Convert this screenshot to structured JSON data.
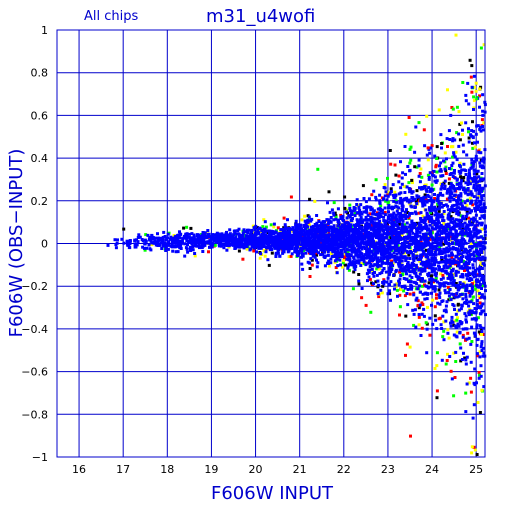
{
  "chart_data": {
    "type": "scatter",
    "title": "m31_u4wofi",
    "subtitle": "All chips",
    "xlabel": "F606W INPUT",
    "ylabel": "F606W (OBS−INPUT)",
    "xlim": [
      15.5,
      25.2
    ],
    "ylim": [
      -1,
      1
    ],
    "x_ticks": [
      "16",
      "17",
      "18",
      "19",
      "20",
      "21",
      "22",
      "23",
      "24",
      "25"
    ],
    "y_ticks": [
      "1",
      "0.8",
      "0.6",
      "0.4",
      "0.2",
      "0",
      "−0.2",
      "−0.4",
      "−0.6",
      "−0.8",
      "−1"
    ],
    "grid": true,
    "point_colors": [
      "#0000ff",
      "#00ff00",
      "#ff0000",
      "#000000",
      "#ffff00"
    ],
    "series": [
      {
        "values": [
          {
            "x": 16.5,
            "y": 0.0
          },
          {
            "x": 17.0,
            "y": 0.01
          },
          {
            "x": 17.5,
            "y": 0.01
          },
          {
            "x": 18.0,
            "y": 0.01
          },
          {
            "x": 18.5,
            "y": 0.01
          },
          {
            "x": 19.0,
            "y": 0.02
          },
          {
            "x": 19.5,
            "y": 0.02
          },
          {
            "x": 20.0,
            "y": 0.02
          },
          {
            "x": 20.5,
            "y": 0.02
          },
          {
            "x": 21.0,
            "y": 0.02
          },
          {
            "x": 21.5,
            "y": 0.02
          },
          {
            "x": 22.0,
            "y": 0.02
          },
          {
            "x": 22.5,
            "y": 0.02
          },
          {
            "x": 23.0,
            "y": 0.02
          },
          {
            "x": 23.5,
            "y": 0.02
          },
          {
            "x": 24.0,
            "y": 0.02
          },
          {
            "x": 24.5,
            "y": 0.02
          },
          {
            "x": 25.0,
            "y": 0.02
          }
        ],
        "spread": [
          0.02,
          0.02,
          0.02,
          0.02,
          0.02,
          0.02,
          0.02,
          0.03,
          0.03,
          0.04,
          0.05,
          0.06,
          0.08,
          0.1,
          0.13,
          0.17,
          0.22,
          0.3
        ]
      }
    ],
    "outliers": [
      {
        "x": 21.4,
        "y": 0.35
      },
      {
        "x": 20.8,
        "y": 0.22
      },
      {
        "x": 17.0,
        "y": 0.07
      },
      {
        "x": 24.6,
        "y": 0.62
      },
      {
        "x": 25.0,
        "y": 0.68
      },
      {
        "x": 23.5,
        "y": -0.9
      },
      {
        "x": 24.1,
        "y": -0.72
      },
      {
        "x": 24.9,
        "y": -0.95
      },
      {
        "x": 22.6,
        "y": -0.32
      },
      {
        "x": 23.9,
        "y": 0.45
      },
      {
        "x": 20.3,
        "y": -0.1
      },
      {
        "x": 21.1,
        "y": 0.13
      }
    ]
  }
}
